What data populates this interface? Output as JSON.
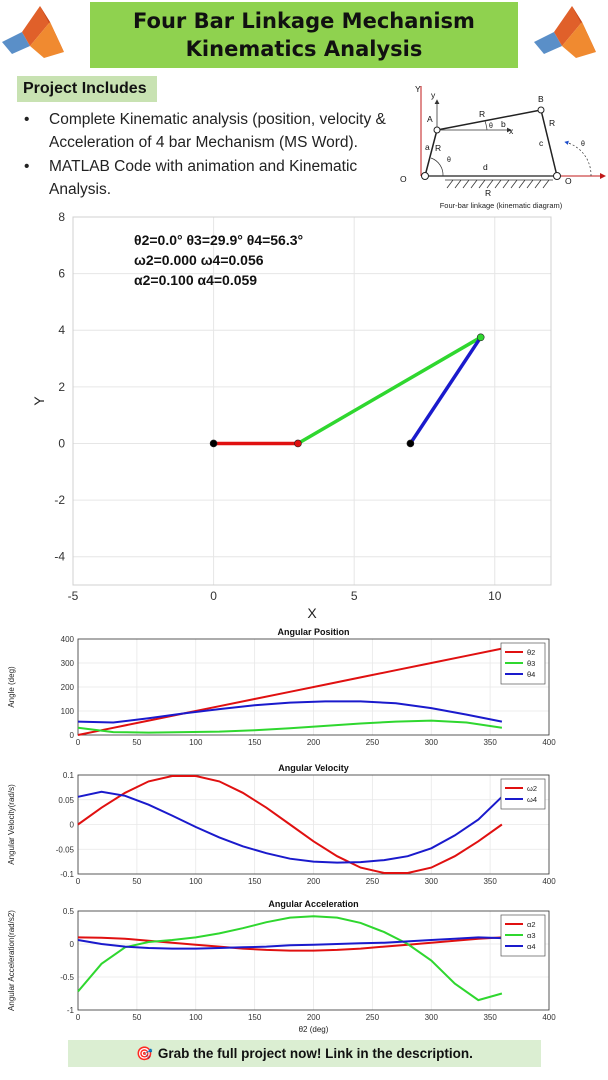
{
  "header": {
    "title_line1": "Four Bar Linkage Mechanism",
    "title_line2": "Kinematics Analysis"
  },
  "project": {
    "heading": "Project Includes",
    "bullets": [
      "Complete Kinematic analysis (position, velocity & Acceleration of 4 bar Mechanism (MS Word).",
      "MATLAB Code with animation and Kinematic Analysis."
    ]
  },
  "diagram": {
    "caption": "Four-bar linkage (kinematic diagram)",
    "labels": {
      "Y": "Y",
      "y": "y",
      "A": "A",
      "B": "B",
      "R3": "R",
      "R4": "R",
      "R2": "R",
      "R1": "R",
      "a": "a",
      "b": "b",
      "c": "c",
      "d": "d",
      "x": "x",
      "O2": "O",
      "O4": "O",
      "t2": "θ",
      "t3": "θ",
      "t4": "θ"
    }
  },
  "colors": {
    "crank": "#e01010",
    "coupler": "#2fd72f",
    "rocker": "#1a1acc",
    "banner": "#8fd24f"
  },
  "chart_data": [
    {
      "type": "line",
      "title": "",
      "xlabel": "X",
      "ylabel": "Y",
      "xlim": [
        -5,
        12
      ],
      "ylim": [
        -5,
        8
      ],
      "xticks": [
        -5,
        0,
        5,
        10
      ],
      "yticks": [
        -4,
        -2,
        0,
        2,
        4,
        6,
        8
      ],
      "grid": true,
      "annotations": [
        "θ2=0.0°  θ3=29.9°  θ4=56.3°",
        "ω2=0.000  ω4=0.056",
        "α2=0.100  α4=0.059"
      ],
      "series": [
        {
          "x": [
            0,
            3
          ],
          "y": [
            0,
            0
          ],
          "color": "#e01010"
        },
        {
          "x": [
            3,
            9.5
          ],
          "y": [
            0,
            3.75
          ],
          "color": "#2fd72f"
        },
        {
          "x": [
            7,
            9.5
          ],
          "y": [
            0,
            3.75
          ],
          "color": "#1a1acc"
        }
      ],
      "joints": [
        {
          "x": 0,
          "y": 0,
          "color": "#000000"
        },
        {
          "x": 3,
          "y": 0,
          "color": "#e01010"
        },
        {
          "x": 9.5,
          "y": 3.75,
          "color": "#2fd72f"
        },
        {
          "x": 7,
          "y": 0,
          "color": "#000000"
        }
      ]
    },
    {
      "type": "line",
      "title": "Angular Position",
      "xlabel": "",
      "ylabel": "Angle (deg)",
      "xlim": [
        0,
        400
      ],
      "ylim": [
        0,
        400
      ],
      "xticks": [
        0,
        50,
        100,
        150,
        200,
        250,
        300,
        350,
        400
      ],
      "yticks": [
        0,
        100,
        200,
        300,
        400
      ],
      "legend": "top-right",
      "x": [
        0,
        30,
        60,
        90,
        120,
        150,
        180,
        210,
        240,
        270,
        300,
        330,
        360
      ],
      "series": [
        {
          "name": "θ2",
          "color": "#e01010",
          "values": [
            0,
            30,
            60,
            90,
            120,
            150,
            180,
            210,
            240,
            270,
            300,
            330,
            360
          ]
        },
        {
          "name": "θ3",
          "color": "#2fd72f",
          "values": [
            30,
            12,
            10,
            12,
            14,
            20,
            28,
            38,
            48,
            56,
            60,
            52,
            30
          ]
        },
        {
          "name": "θ4",
          "color": "#1a1acc",
          "values": [
            56,
            52,
            70,
            90,
            108,
            124,
            135,
            140,
            140,
            132,
            112,
            85,
            56
          ]
        }
      ]
    },
    {
      "type": "line",
      "title": "Angular Velocity",
      "xlabel": "",
      "ylabel": "Angular Velocity(rad/s)",
      "xlim": [
        0,
        400
      ],
      "ylim": [
        -0.1,
        0.1
      ],
      "xticks": [
        0,
        50,
        100,
        150,
        200,
        250,
        300,
        350,
        400
      ],
      "yticks": [
        -0.1,
        -0.05,
        0,
        0.05,
        0.1
      ],
      "legend": "top-right",
      "x": [
        0,
        20,
        40,
        60,
        80,
        100,
        120,
        140,
        160,
        180,
        200,
        220,
        240,
        260,
        280,
        300,
        320,
        340,
        360
      ],
      "series": [
        {
          "name": "ω2",
          "color": "#e01010",
          "values": [
            0,
            0.034,
            0.064,
            0.087,
            0.098,
            0.098,
            0.087,
            0.064,
            0.034,
            0,
            -0.034,
            -0.064,
            -0.087,
            -0.098,
            -0.098,
            -0.087,
            -0.064,
            -0.034,
            0
          ]
        },
        {
          "name": "ω4",
          "color": "#1a1acc",
          "values": [
            0.056,
            0.066,
            0.058,
            0.04,
            0.018,
            -0.005,
            -0.026,
            -0.044,
            -0.058,
            -0.069,
            -0.075,
            -0.077,
            -0.076,
            -0.072,
            -0.064,
            -0.048,
            -0.022,
            0.01,
            0.056
          ]
        }
      ]
    },
    {
      "type": "line",
      "title": "Angular Acceleration",
      "xlabel": "θ2 (deg)",
      "ylabel": "Angular Acceleration(rad/s2)",
      "xlim": [
        0,
        400
      ],
      "ylim": [
        -1,
        0.5
      ],
      "xticks": [
        0,
        50,
        100,
        150,
        200,
        250,
        300,
        350,
        400
      ],
      "yticks": [
        -1,
        -0.5,
        0,
        0.5
      ],
      "legend": "top-right",
      "x": [
        0,
        20,
        40,
        60,
        80,
        100,
        120,
        140,
        160,
        180,
        200,
        220,
        240,
        260,
        280,
        300,
        320,
        340,
        360
      ],
      "series": [
        {
          "name": "α2",
          "color": "#e01010",
          "values": [
            0.1,
            0.095,
            0.08,
            0.05,
            0.02,
            -0.01,
            -0.04,
            -0.07,
            -0.09,
            -0.1,
            -0.1,
            -0.09,
            -0.07,
            -0.04,
            -0.01,
            0.02,
            0.05,
            0.08,
            0.1
          ]
        },
        {
          "name": "α3",
          "color": "#2fd72f",
          "values": [
            -0.72,
            -0.3,
            -0.05,
            0.03,
            0.06,
            0.1,
            0.16,
            0.24,
            0.33,
            0.4,
            0.42,
            0.4,
            0.32,
            0.18,
            0.0,
            -0.25,
            -0.6,
            -0.85,
            -0.75
          ]
        },
        {
          "name": "α4",
          "color": "#1a1acc",
          "values": [
            0.06,
            0.0,
            -0.04,
            -0.06,
            -0.07,
            -0.07,
            -0.06,
            -0.05,
            -0.04,
            -0.02,
            -0.01,
            0.0,
            0.01,
            0.02,
            0.04,
            0.06,
            0.08,
            0.1,
            0.09
          ]
        }
      ]
    }
  ],
  "cta": {
    "icon": "target-icon",
    "text": "Grab the full project now! Link in the description."
  }
}
